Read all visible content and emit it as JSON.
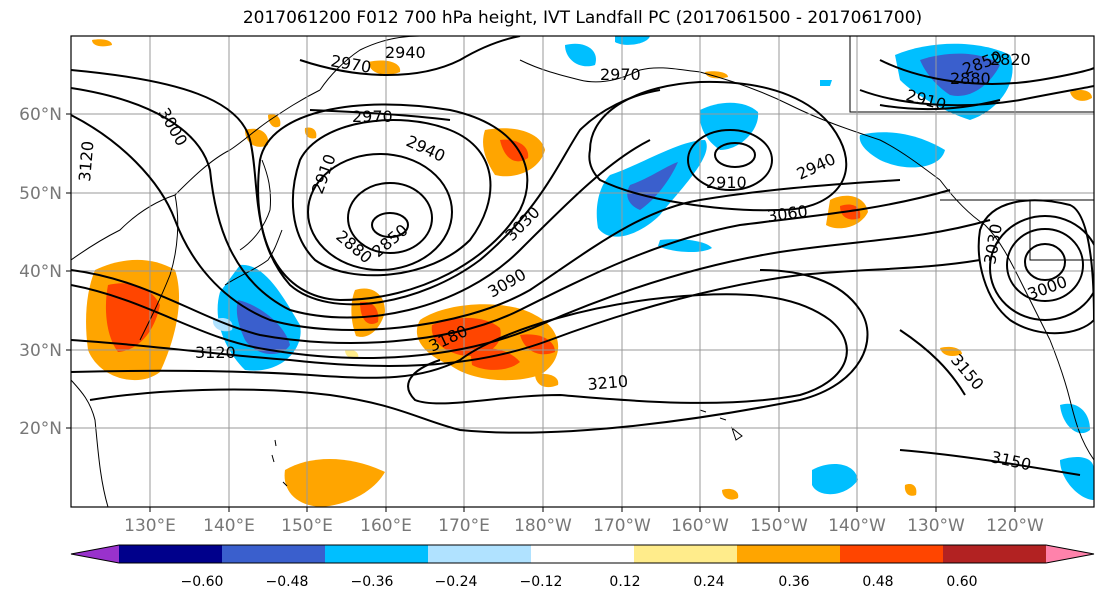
{
  "title": "2017061200 F012 700 hPa height, IVT Landfall PC (2017061500 - 2017061700)",
  "lat_labels": [
    "60°N",
    "50°N",
    "40°N",
    "30°N",
    "20°N"
  ],
  "lon_labels": [
    "130°E",
    "140°E",
    "150°E",
    "160°E",
    "170°E",
    "180°W",
    "170°W",
    "160°W",
    "150°W",
    "140°W",
    "130°W",
    "120°W"
  ],
  "contour_labels": [
    "2940",
    "2970",
    "2970",
    "2970",
    "3000",
    "3120",
    "2910",
    "2940",
    "2880",
    "2850",
    "3030",
    "3090",
    "3180",
    "3120",
    "3210",
    "2910",
    "2940",
    "3060",
    "2880",
    "2850",
    "2820",
    "2910",
    "3030",
    "3000",
    "3150",
    "3150"
  ],
  "colorbar": {
    "ticks": [
      "−0.60",
      "−0.48",
      "−0.36",
      "−0.24",
      "−0.12",
      "0.12",
      "0.24",
      "0.36",
      "0.48",
      "0.60"
    ],
    "colors": [
      "#9932cc",
      "#00008b",
      "#3a5fcd",
      "#00bfff",
      "#b0e2ff",
      "#ffffff",
      "#ffec8b",
      "#ffa500",
      "#ff4500",
      "#b22222",
      "#ff82ab"
    ]
  }
}
